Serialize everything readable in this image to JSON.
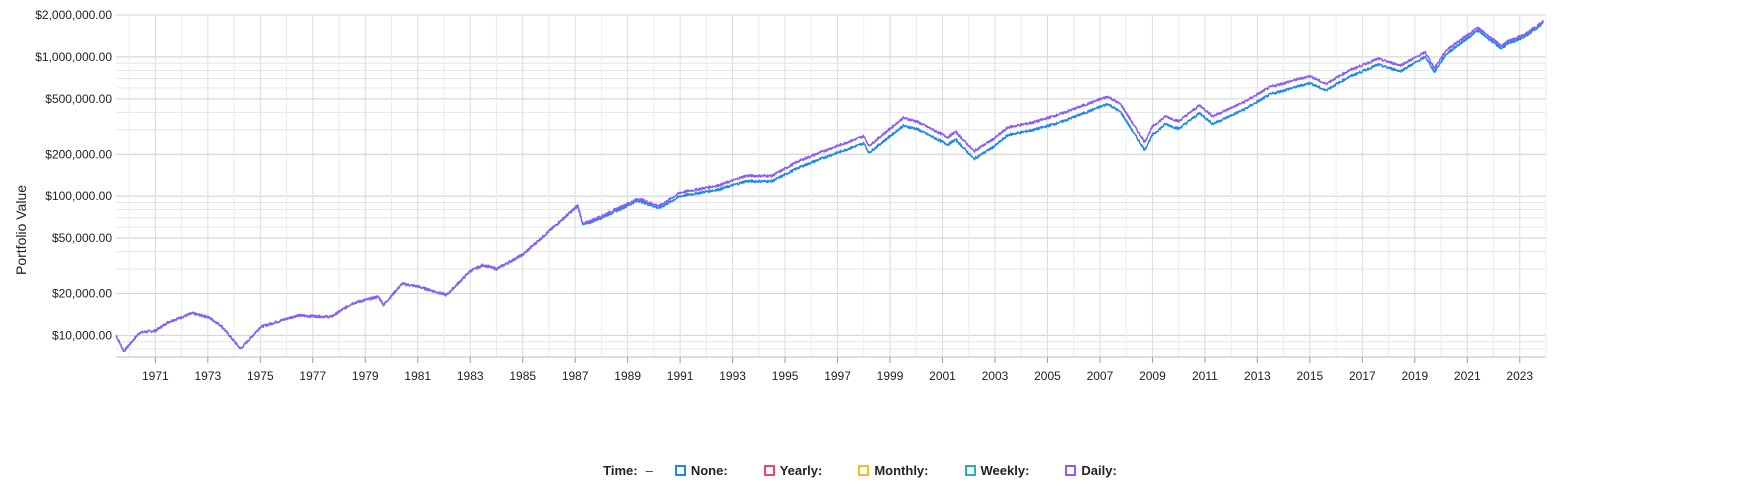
{
  "chart_data": {
    "type": "line",
    "title": "",
    "xlabel": "",
    "ylabel": "Portfolio Value",
    "y_scale": "log",
    "xlim": [
      1970.0,
      2024.5
    ],
    "ylim": [
      7000,
      2000000
    ],
    "grid": true,
    "y_ticks": [
      {
        "value": 2000000,
        "label": "$2,000,000.00"
      },
      {
        "value": 1000000,
        "label": "$1,000,000.00"
      },
      {
        "value": 500000,
        "label": "$500,000.00"
      },
      {
        "value": 200000,
        "label": "$200,000.00"
      },
      {
        "value": 100000,
        "label": "$100,000.00"
      },
      {
        "value": 50000,
        "label": "$50,000.00"
      },
      {
        "value": 20000,
        "label": "$20,000.00"
      },
      {
        "value": 10000,
        "label": "$10,000.00"
      }
    ],
    "x_ticks": [
      "1971",
      "1973",
      "1975",
      "1977",
      "1979",
      "1981",
      "1983",
      "1985",
      "1987",
      "1989",
      "1991",
      "1993",
      "1995",
      "1997",
      "1999",
      "2001",
      "2003",
      "2005",
      "2007",
      "2009",
      "2011",
      "2013",
      "2015",
      "2017",
      "2019",
      "2021",
      "2023"
    ],
    "legend": {
      "title": "Time:",
      "dash": "–",
      "position": "bottom-center",
      "items": [
        {
          "label": "None:",
          "color": "#1e88e5"
        },
        {
          "label": "Yearly:",
          "color": "#f44369"
        },
        {
          "label": "Monthly:",
          "color": "#f9b928"
        },
        {
          "label": "Weekly:",
          "color": "#24b3b9"
        },
        {
          "label": "Daily:",
          "color": "#8b5cf6"
        }
      ]
    },
    "series": [
      {
        "name": "None:",
        "color": "#1e88e5",
        "points": [
          [
            1970.0,
            10000
          ],
          [
            1970.3,
            7700
          ],
          [
            1970.9,
            10500
          ],
          [
            1971.5,
            10800
          ],
          [
            1972.0,
            12500
          ],
          [
            1972.9,
            14400
          ],
          [
            1973.5,
            13600
          ],
          [
            1974.0,
            11800
          ],
          [
            1974.75,
            8000
          ],
          [
            1975.5,
            11500
          ],
          [
            1976.9,
            13900
          ],
          [
            1978.2,
            13600
          ],
          [
            1979.0,
            17000
          ],
          [
            1980.0,
            19000
          ],
          [
            1980.2,
            16600
          ],
          [
            1980.9,
            23500
          ],
          [
            1981.5,
            22500
          ],
          [
            1982.6,
            19500
          ],
          [
            1983.5,
            29000
          ],
          [
            1984.0,
            32000
          ],
          [
            1984.5,
            30000
          ],
          [
            1985.5,
            38000
          ],
          [
            1986.5,
            56000
          ],
          [
            1987.6,
            85000
          ],
          [
            1987.8,
            62000
          ],
          [
            1988.5,
            70000
          ],
          [
            1989.9,
            93000
          ],
          [
            1990.7,
            82000
          ],
          [
            1991.5,
            100000
          ],
          [
            1993.0,
            112000
          ],
          [
            1994.0,
            128000
          ],
          [
            1995.0,
            128000
          ],
          [
            1996.0,
            160000
          ],
          [
            1997.0,
            190000
          ],
          [
            1998.5,
            240000
          ],
          [
            1998.7,
            205000
          ],
          [
            1999.5,
            270000
          ],
          [
            2000.0,
            320000
          ],
          [
            2000.5,
            305000
          ],
          [
            2001.7,
            235000
          ],
          [
            2002.0,
            255000
          ],
          [
            2002.7,
            185000
          ],
          [
            2003.5,
            230000
          ],
          [
            2004.0,
            275000
          ],
          [
            2005.0,
            300000
          ],
          [
            2006.0,
            340000
          ],
          [
            2007.8,
            460000
          ],
          [
            2008.3,
            400000
          ],
          [
            2009.2,
            215000
          ],
          [
            2009.5,
            275000
          ],
          [
            2010.0,
            330000
          ],
          [
            2010.5,
            305000
          ],
          [
            2011.3,
            395000
          ],
          [
            2011.8,
            330000
          ],
          [
            2013.0,
            420000
          ],
          [
            2014.0,
            540000
          ],
          [
            2015.5,
            650000
          ],
          [
            2016.1,
            575000
          ],
          [
            2017.0,
            720000
          ],
          [
            2018.1,
            880000
          ],
          [
            2018.95,
            790000
          ],
          [
            2019.9,
            1000000
          ],
          [
            2020.25,
            780000
          ],
          [
            2020.7,
            1050000
          ],
          [
            2021.9,
            1550000
          ],
          [
            2022.8,
            1150000
          ],
          [
            2023.0,
            1230000
          ],
          [
            2023.7,
            1400000
          ],
          [
            2024.4,
            1750000
          ]
        ]
      },
      {
        "name": "Daily:",
        "color": "#8b5cf6",
        "points": [
          [
            1970.0,
            10000
          ],
          [
            1970.3,
            7700
          ],
          [
            1970.9,
            10500
          ],
          [
            1971.5,
            10800
          ],
          [
            1972.0,
            12500
          ],
          [
            1972.9,
            14400
          ],
          [
            1973.5,
            13600
          ],
          [
            1974.0,
            11800
          ],
          [
            1974.75,
            8000
          ],
          [
            1975.5,
            11500
          ],
          [
            1976.9,
            13900
          ],
          [
            1978.2,
            13600
          ],
          [
            1979.0,
            17000
          ],
          [
            1980.0,
            19000
          ],
          [
            1980.2,
            16600
          ],
          [
            1980.9,
            23500
          ],
          [
            1981.5,
            22500
          ],
          [
            1982.6,
            19500
          ],
          [
            1983.5,
            29000
          ],
          [
            1984.0,
            32000
          ],
          [
            1984.5,
            30000
          ],
          [
            1985.5,
            38000
          ],
          [
            1986.5,
            56000
          ],
          [
            1987.6,
            86000
          ],
          [
            1987.8,
            63000
          ],
          [
            1988.5,
            72000
          ],
          [
            1989.9,
            96000
          ],
          [
            1990.7,
            85000
          ],
          [
            1991.5,
            106000
          ],
          [
            1993.0,
            120000
          ],
          [
            1994.0,
            140000
          ],
          [
            1995.0,
            140000
          ],
          [
            1996.0,
            178000
          ],
          [
            1997.0,
            212000
          ],
          [
            1998.5,
            270000
          ],
          [
            1998.7,
            230000
          ],
          [
            1999.5,
            305000
          ],
          [
            2000.0,
            365000
          ],
          [
            2000.5,
            345000
          ],
          [
            2001.7,
            265000
          ],
          [
            2002.0,
            290000
          ],
          [
            2002.7,
            210000
          ],
          [
            2003.5,
            262000
          ],
          [
            2004.0,
            312000
          ],
          [
            2005.0,
            340000
          ],
          [
            2006.0,
            390000
          ],
          [
            2007.8,
            520000
          ],
          [
            2008.3,
            455000
          ],
          [
            2009.2,
            245000
          ],
          [
            2009.5,
            315000
          ],
          [
            2010.0,
            375000
          ],
          [
            2010.5,
            345000
          ],
          [
            2011.3,
            450000
          ],
          [
            2011.8,
            375000
          ],
          [
            2013.0,
            475000
          ],
          [
            2014.0,
            610000
          ],
          [
            2015.5,
            730000
          ],
          [
            2016.1,
            640000
          ],
          [
            2017.0,
            800000
          ],
          [
            2018.1,
            970000
          ],
          [
            2018.95,
            870000
          ],
          [
            2019.9,
            1080000
          ],
          [
            2020.25,
            830000
          ],
          [
            2020.7,
            1120000
          ],
          [
            2021.9,
            1620000
          ],
          [
            2022.8,
            1200000
          ],
          [
            2023.0,
            1280000
          ],
          [
            2023.7,
            1450000
          ],
          [
            2024.4,
            1800000
          ]
        ]
      }
    ]
  }
}
